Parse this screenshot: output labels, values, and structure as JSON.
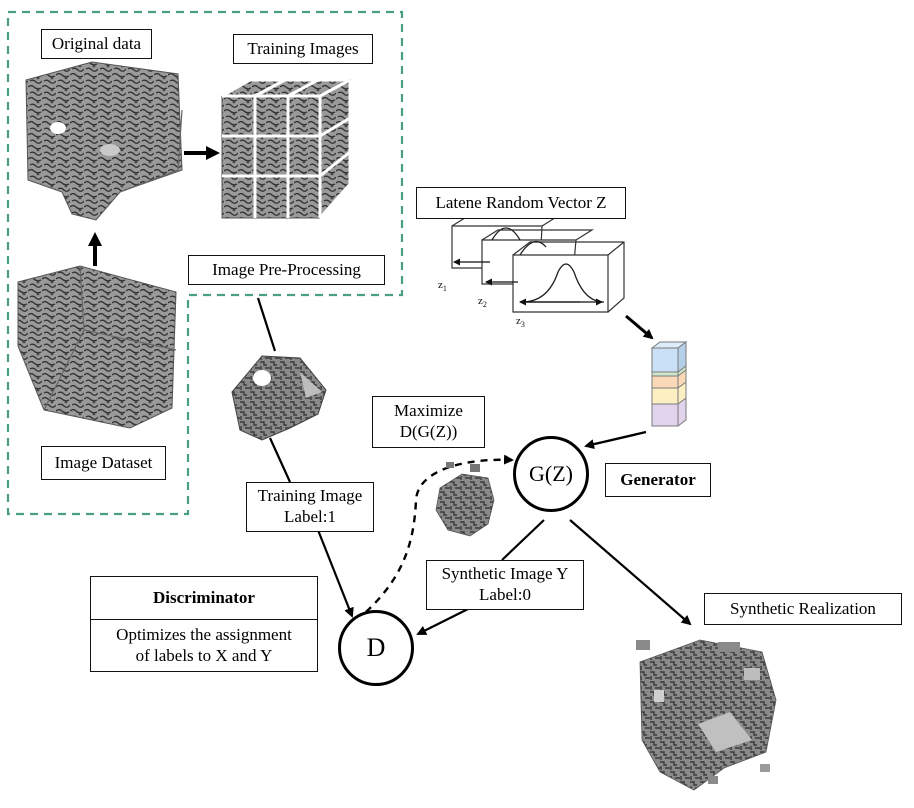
{
  "labels": {
    "original_data": "Original data",
    "training_images": "Training Images",
    "image_preprocessing": "Image Pre-Processing",
    "image_dataset": "Image Dataset",
    "latent_vector": "Latene Random Vector Z",
    "maximize_line1": "Maximize",
    "maximize_line2": "D(G(Z))",
    "generator_node": "G(Z)",
    "generator_label": "Generator",
    "training_image_line1": "Training Image",
    "training_image_line2": "Label:1",
    "synthetic_image_line1": "Synthetic Image Y",
    "synthetic_image_line2": "Label:0",
    "synthetic_realization": "Synthetic Realization",
    "discriminator_title": "Discriminator",
    "discriminator_line1": "Optimizes the assignment",
    "discriminator_line2": "of labels to X and Y",
    "discriminator_node": "D",
    "z1": "z",
    "z1_sub": "1",
    "z2": "z",
    "z2_sub": "2",
    "z3": "z",
    "z3_sub": "3"
  },
  "colors": {
    "dashed_border": "#4a9e86",
    "rock": "#8c8c8c",
    "rock_dark": "#3c3c3c",
    "latent_stack": [
      "#c9e0f7",
      "#cfe8cc",
      "#fbd9b8",
      "#fcefc2",
      "#e3d4ee"
    ]
  }
}
